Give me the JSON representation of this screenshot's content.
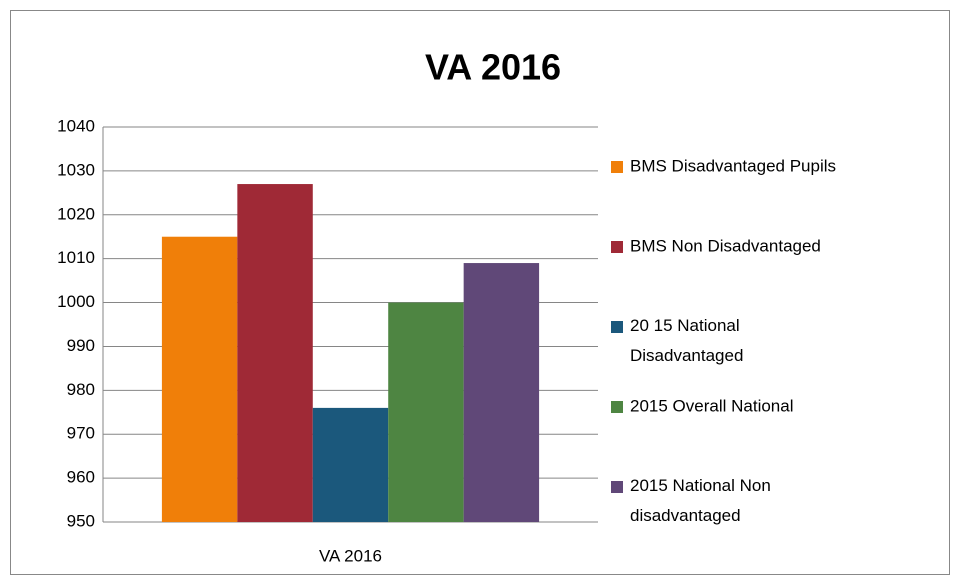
{
  "chart_data": {
    "type": "bar",
    "title": "VA 2016",
    "categories": [
      "VA 2016"
    ],
    "series": [
      {
        "name": "BMS Disadvantaged Pupils",
        "color": "#f07f09",
        "values": [
          1015
        ]
      },
      {
        "name": "BMS Non Disadvantaged",
        "color": "#9f2936",
        "values": [
          1027
        ]
      },
      {
        "name": "20 15 National Disadvantaged",
        "color": "#1b587c",
        "values": [
          976
        ]
      },
      {
        "name": "2015 Overall National",
        "color": "#4e8542",
        "values": [
          1000
        ]
      },
      {
        "name": "2015 National Non disadvantaged",
        "color": "#604878",
        "values": [
          1009
        ]
      }
    ],
    "ylim": [
      950,
      1040
    ],
    "yticks": [
      950,
      960,
      970,
      980,
      990,
      1000,
      1010,
      1020,
      1030,
      1040
    ],
    "grid": true,
    "legend": "right"
  }
}
